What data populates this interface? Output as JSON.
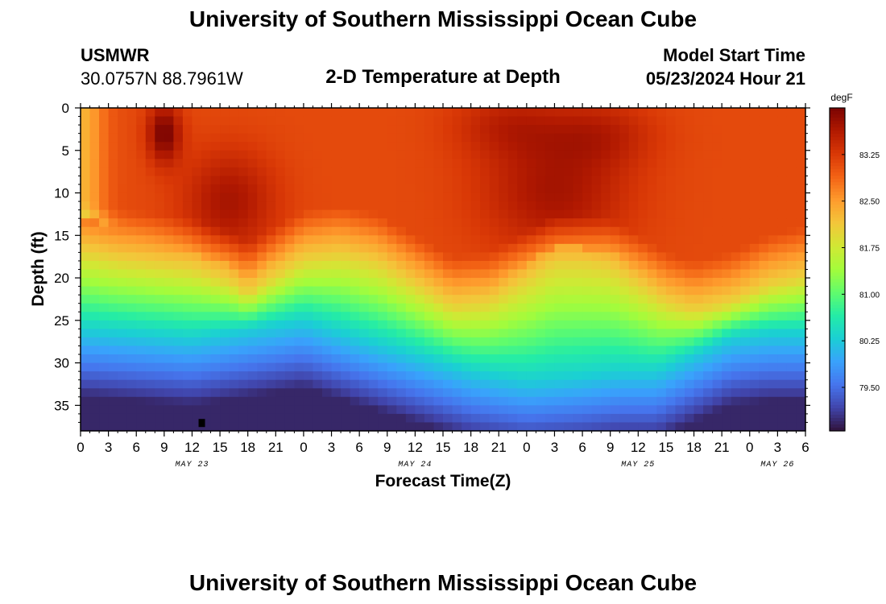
{
  "header": {
    "title": "University of Southern Mississippi Ocean Cube",
    "station": "USMWR",
    "coords": "30.0757N  88.7961W",
    "subtitle": "2-D Temperature at Depth",
    "model_label": "Model Start Time",
    "model_time": "05/23/2024 Hour 21"
  },
  "footer": {
    "title": "University of Southern Mississippi Ocean Cube"
  },
  "chart_data": {
    "type": "heatmap",
    "title": "2-D Temperature at Depth",
    "xlabel": "Forecast Time(Z)",
    "ylabel": "Depth (ft)",
    "x_range_hours": [
      0,
      78
    ],
    "x_ticks": [
      "0",
      "3",
      "6",
      "9",
      "12",
      "15",
      "18",
      "21",
      "0",
      "3",
      "6",
      "9",
      "12",
      "15",
      "18",
      "21",
      "0",
      "3",
      "6",
      "9",
      "12",
      "15",
      "18",
      "21",
      "0",
      "3",
      "6"
    ],
    "date_labels": [
      {
        "label": "MAY 23",
        "hour": 12
      },
      {
        "label": "MAY 24",
        "hour": 36
      },
      {
        "label": "MAY 25",
        "hour": 60
      },
      {
        "label": "MAY 26",
        "hour": 75
      }
    ],
    "y_range_ft": [
      0,
      38
    ],
    "y_ticks": [
      0,
      5,
      10,
      15,
      20,
      25,
      30,
      35
    ],
    "colorbar": {
      "unit": "degF",
      "range": [
        78.8,
        84.0
      ],
      "ticks": [
        "83.25",
        "82.50",
        "81.75",
        "81.00",
        "80.25",
        "79.50"
      ],
      "colors": [
        "#30123b",
        "#4145ab",
        "#4675ed",
        "#39a2fc",
        "#1bcfd4",
        "#24eca6",
        "#61fc6c",
        "#a4fc3b",
        "#d1e834",
        "#f3c63a",
        "#fe9b2d",
        "#f36315",
        "#d93806",
        "#b11901",
        "#7a0402"
      ]
    },
    "mixed_layer_depth_ft": [
      [
        0,
        15
      ],
      [
        4,
        16
      ],
      [
        8,
        16.5
      ],
      [
        12,
        17
      ],
      [
        16,
        18.5
      ],
      [
        18,
        20
      ],
      [
        20,
        18.5
      ],
      [
        24,
        16
      ],
      [
        28,
        15.5
      ],
      [
        32,
        16.5
      ],
      [
        36,
        19
      ],
      [
        40,
        21.5
      ],
      [
        44,
        21
      ],
      [
        48,
        18.5
      ],
      [
        51,
        16.5
      ],
      [
        54,
        16.5
      ],
      [
        57,
        17
      ],
      [
        60,
        19
      ],
      [
        63,
        21
      ],
      [
        66,
        22
      ],
      [
        70,
        21
      ],
      [
        74,
        19
      ],
      [
        78,
        18
      ]
    ],
    "deep_layer_depth_ft": [
      [
        0,
        26
      ],
      [
        6,
        26.5
      ],
      [
        12,
        27
      ],
      [
        18,
        26
      ],
      [
        24,
        25
      ],
      [
        30,
        27
      ],
      [
        36,
        29
      ],
      [
        42,
        31
      ],
      [
        48,
        32
      ],
      [
        54,
        31.5
      ],
      [
        58,
        31
      ],
      [
        62,
        31
      ],
      [
        66,
        29
      ],
      [
        70,
        27
      ],
      [
        74,
        26.5
      ],
      [
        78,
        26.5
      ]
    ],
    "surface_warm_cores": [
      {
        "hour": 9,
        "depth_ft": 3,
        "temp_f": 84.0,
        "spread_h": 1.8,
        "spread_ft": 3.5
      },
      {
        "hour": 16,
        "depth_ft": 11,
        "temp_f": 83.7,
        "spread_h": 5,
        "spread_ft": 6
      },
      {
        "hour": 51,
        "depth_ft": 10,
        "temp_f": 83.7,
        "spread_h": 8,
        "spread_ft": 7
      },
      {
        "hour": 46,
        "depth_ft": 2,
        "temp_f": 83.5,
        "spread_h": 6,
        "spread_ft": 4
      },
      {
        "hour": 56,
        "depth_ft": 3,
        "temp_f": 83.5,
        "spread_h": 6,
        "spread_ft": 4
      }
    ],
    "surface_cool_edge": {
      "hour": 0,
      "temp_f": 82.3
    }
  }
}
